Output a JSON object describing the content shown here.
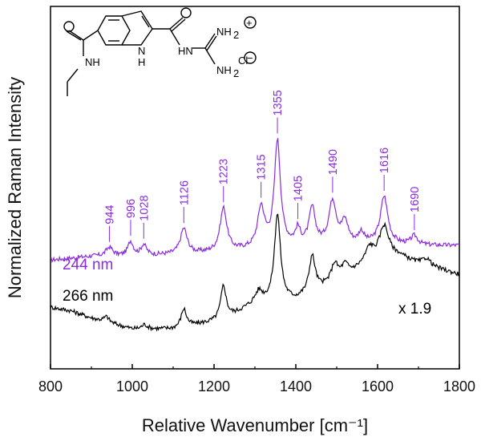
{
  "chart_data": {
    "type": "line",
    "title": "",
    "xlabel": "Relative Wavenumber [cm⁻¹]",
    "ylabel": "Normalized Raman Intensity",
    "xlim": [
      800,
      1800
    ],
    "ylim": [
      0,
      1
    ],
    "x_ticks": [
      800,
      1000,
      1200,
      1400,
      1600,
      1800
    ],
    "y_ticks_shown": false,
    "colors": {
      "series_244": "#8a2be2",
      "series_266": "#000000",
      "axis": "#000000"
    },
    "series": [
      {
        "name": "244 nm",
        "color": "#8a2be2",
        "baseline": [
          [
            800,
            0.3
          ],
          [
            900,
            0.31
          ],
          [
            1000,
            0.31
          ],
          [
            1100,
            0.315
          ],
          [
            1200,
            0.32
          ],
          [
            1300,
            0.33
          ],
          [
            1400,
            0.34
          ],
          [
            1500,
            0.34
          ],
          [
            1600,
            0.345
          ],
          [
            1700,
            0.34
          ],
          [
            1800,
            0.34
          ]
        ],
        "peaks": [
          [
            944,
            0.025,
            10
          ],
          [
            996,
            0.04,
            8
          ],
          [
            1028,
            0.03,
            8
          ],
          [
            1126,
            0.07,
            10
          ],
          [
            1223,
            0.12,
            10
          ],
          [
            1315,
            0.11,
            10
          ],
          [
            1355,
            0.29,
            9
          ],
          [
            1405,
            0.04,
            7
          ],
          [
            1440,
            0.1,
            9
          ],
          [
            1490,
            0.12,
            11
          ],
          [
            1520,
            0.06,
            10
          ],
          [
            1560,
            0.03,
            8
          ],
          [
            1616,
            0.13,
            11
          ],
          [
            1690,
            0.025,
            10
          ]
        ]
      },
      {
        "name": "266 nm",
        "color": "#000000",
        "baseline": [
          [
            800,
            0.17
          ],
          [
            850,
            0.16
          ],
          [
            900,
            0.14
          ],
          [
            1000,
            0.11
          ],
          [
            1100,
            0.11
          ],
          [
            1200,
            0.13
          ],
          [
            1250,
            0.15
          ],
          [
            1300,
            0.18
          ],
          [
            1400,
            0.19
          ],
          [
            1500,
            0.24
          ],
          [
            1560,
            0.28
          ],
          [
            1600,
            0.3
          ],
          [
            1650,
            0.31
          ],
          [
            1700,
            0.29
          ],
          [
            1800,
            0.26
          ]
        ],
        "peaks": [
          [
            937,
            0.015,
            8
          ],
          [
            1030,
            0.012,
            8
          ],
          [
            1126,
            0.05,
            8
          ],
          [
            1223,
            0.09,
            8
          ],
          [
            1310,
            0.03,
            10
          ],
          [
            1355,
            0.24,
            9
          ],
          [
            1440,
            0.1,
            9
          ],
          [
            1495,
            0.05,
            10
          ],
          [
            1520,
            0.03,
            10
          ],
          [
            1580,
            0.04,
            12
          ],
          [
            1616,
            0.09,
            14
          ],
          [
            1720,
            0.02,
            12
          ]
        ]
      }
    ],
    "peak_labels": [
      {
        "wavenumber": 944,
        "text": "944"
      },
      {
        "wavenumber": 996,
        "text": "996"
      },
      {
        "wavenumber": 1028,
        "text": "1028"
      },
      {
        "wavenumber": 1126,
        "text": "1126"
      },
      {
        "wavenumber": 1223,
        "text": "1223"
      },
      {
        "wavenumber": 1315,
        "text": "1315"
      },
      {
        "wavenumber": 1355,
        "text": "1355"
      },
      {
        "wavenumber": 1405,
        "text": "1405"
      },
      {
        "wavenumber": 1490,
        "text": "1490"
      },
      {
        "wavenumber": 1616,
        "text": "1616"
      },
      {
        "wavenumber": 1690,
        "text": "1690"
      }
    ],
    "legend": {
      "entries": [
        "244 nm",
        "266 nm"
      ],
      "placement": "middle-left"
    },
    "annotation": "x 1.9",
    "molecule_labels": {
      "nh": "NH",
      "n_h": "N",
      "h": "H",
      "hn": "HN",
      "nh2_plus": "NH",
      "nh2": "NH",
      "sub2": "2",
      "cl": "Cl",
      "plus": "+",
      "minus": "−"
    }
  }
}
